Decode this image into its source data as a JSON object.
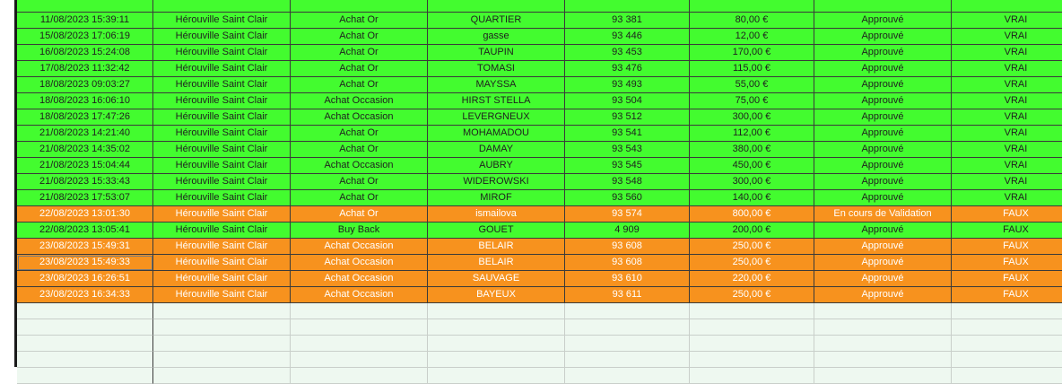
{
  "sheet": {
    "rows": [
      {
        "status": "approved",
        "cells": [
          "",
          "",
          "",
          "",
          "",
          "",
          "",
          ""
        ]
      },
      {
        "status": "approved",
        "cells": [
          "11/08/2023 15:39:11",
          "Hérouville Saint Clair",
          "Achat Or",
          "QUARTIER",
          "93 381",
          "80,00 €",
          "Approuvé",
          "VRAI"
        ]
      },
      {
        "status": "approved",
        "cells": [
          "15/08/2023 17:06:19",
          "Hérouville Saint Clair",
          "Achat Or",
          "gasse",
          "93 446",
          "12,00 €",
          "Approuvé",
          "VRAI"
        ]
      },
      {
        "status": "approved",
        "cells": [
          "16/08/2023 15:24:08",
          "Hérouville Saint Clair",
          "Achat Or",
          "TAUPIN",
          "93 453",
          "170,00 €",
          "Approuvé",
          "VRAI"
        ]
      },
      {
        "status": "approved",
        "cells": [
          "17/08/2023 11:32:42",
          "Hérouville Saint Clair",
          "Achat Or",
          "TOMASI",
          "93 476",
          "115,00 €",
          "Approuvé",
          "VRAI"
        ]
      },
      {
        "status": "approved",
        "cells": [
          "18/08/2023 09:03:27",
          "Hérouville Saint Clair",
          "Achat Or",
          "MAYSSA",
          "93 493",
          "55,00 €",
          "Approuvé",
          "VRAI"
        ]
      },
      {
        "status": "approved",
        "cells": [
          "18/08/2023 16:06:10",
          "Hérouville Saint Clair",
          "Achat Occasion",
          "HIRST STELLA",
          "93 504",
          "75,00 €",
          "Approuvé",
          "VRAI"
        ]
      },
      {
        "status": "approved",
        "cells": [
          "18/08/2023 17:47:26",
          "Hérouville Saint Clair",
          "Achat Occasion",
          "LEVERGNEUX",
          "93 512",
          "300,00 €",
          "Approuvé",
          "VRAI"
        ]
      },
      {
        "status": "approved",
        "cells": [
          "21/08/2023 14:21:40",
          "Hérouville Saint Clair",
          "Achat Or",
          "MOHAMADOU",
          "93 541",
          "112,00 €",
          "Approuvé",
          "VRAI"
        ]
      },
      {
        "status": "approved",
        "cells": [
          "21/08/2023 14:35:02",
          "Hérouville Saint Clair",
          "Achat Or",
          "DAMAY",
          "93 543",
          "380,00 €",
          "Approuvé",
          "VRAI"
        ]
      },
      {
        "status": "approved",
        "cells": [
          "21/08/2023 15:04:44",
          "Hérouville Saint Clair",
          "Achat Occasion",
          "AUBRY",
          "93 545",
          "450,00 €",
          "Approuvé",
          "VRAI"
        ]
      },
      {
        "status": "approved",
        "cells": [
          "21/08/2023 15:33:43",
          "Hérouville Saint Clair",
          "Achat Or",
          "WIDEROWSKI",
          "93 548",
          "300,00 €",
          "Approuvé",
          "VRAI"
        ]
      },
      {
        "status": "approved",
        "cells": [
          "21/08/2023 17:53:07",
          "Hérouville Saint Clair",
          "Achat Or",
          "MIROF",
          "93 560",
          "140,00 €",
          "Approuvé",
          "VRAI"
        ]
      },
      {
        "status": "pending",
        "cells": [
          "22/08/2023 13:01:30",
          "Hérouville Saint Clair",
          "Achat Or",
          "ismailova",
          "93 574",
          "800,00 €",
          "En cours de Validation",
          "FAUX"
        ]
      },
      {
        "status": "mixed",
        "cells": [
          "22/08/2023 13:05:41",
          "Hérouville Saint Clair",
          "Buy Back",
          "GOUET",
          "4 909",
          "200,00 €",
          "Approuvé",
          "FAUX"
        ]
      },
      {
        "status": "pending",
        "cells": [
          "23/08/2023 15:49:31",
          "Hérouville Saint Clair",
          "Achat Occasion",
          "BELAIR",
          "93 608",
          "250,00 €",
          "Approuvé",
          "FAUX"
        ]
      },
      {
        "status": "pending",
        "cells": [
          "23/08/2023 15:49:33",
          "Hérouville Saint Clair",
          "Achat Occasion",
          "BELAIR",
          "93 608",
          "250,00 €",
          "Approuvé",
          "FAUX"
        ]
      },
      {
        "status": "pending",
        "cells": [
          "23/08/2023 16:26:51",
          "Hérouville Saint Clair",
          "Achat Occasion",
          "SAUVAGE",
          "93 610",
          "220,00 €",
          "Approuvé",
          "FAUX"
        ]
      },
      {
        "status": "pending",
        "cells": [
          "23/08/2023 16:34:33",
          "Hérouville Saint Clair",
          "Achat Occasion",
          "BAYEUX",
          "93 611",
          "250,00 €",
          "Approuvé",
          "FAUX"
        ]
      }
    ],
    "empty_rows": 5,
    "colors": {
      "approved": "#43fc2f",
      "pending": "#f7921e",
      "empty": "#eef8f0"
    }
  }
}
